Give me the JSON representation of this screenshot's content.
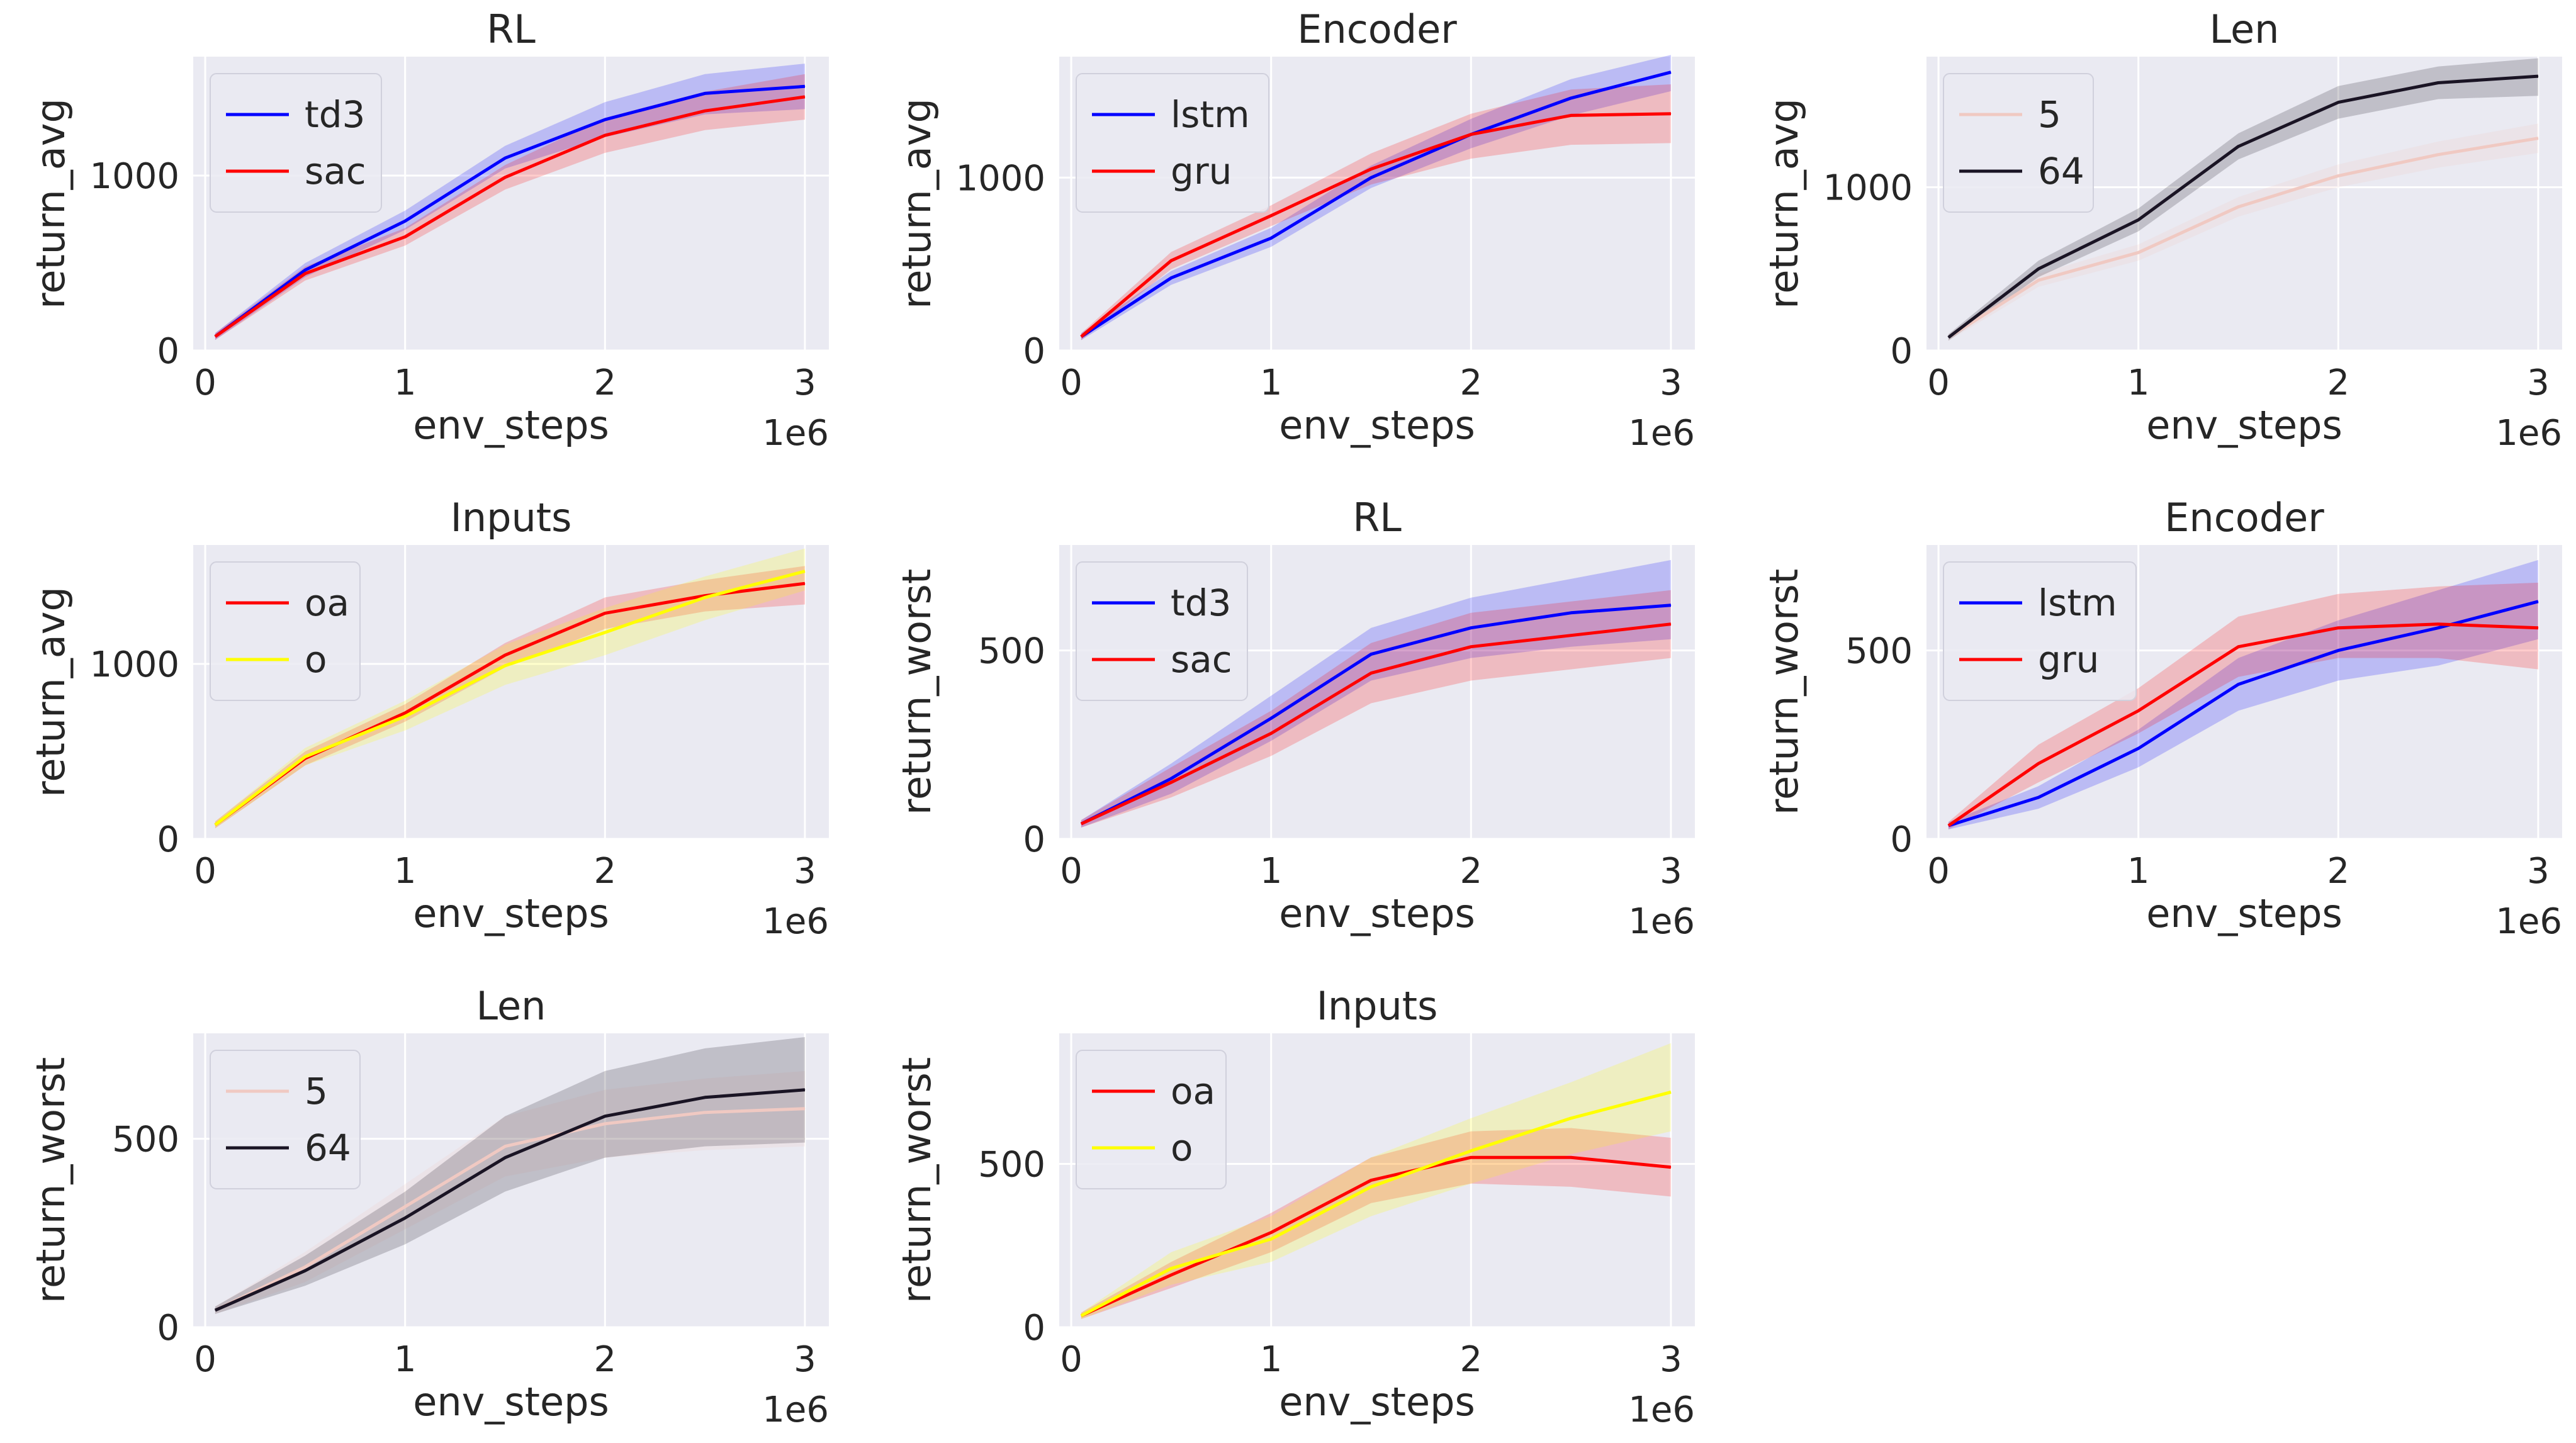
{
  "figure": {
    "colors": {
      "background": "#eaeaf2",
      "grid": "#ffffff",
      "td3": "#0000ff",
      "sac": "#ff0000",
      "lstm": "#0000ff",
      "gru": "#ff0000",
      "len5": "#f0c9c2",
      "len64": "#1a1424",
      "oa": "#ff0000",
      "o": "#ffff00"
    }
  },
  "chart_data": [
    {
      "type": "line",
      "title": "RL",
      "xlabel": "env_steps",
      "ylabel": "return_avg",
      "x_offset_label": "1e6",
      "xlim": [
        -0.06,
        3.12
      ],
      "ylim": [
        0,
        1680
      ],
      "xticks": [
        0,
        1,
        2,
        3
      ],
      "yticks": [
        0,
        1000
      ],
      "x": [
        0.05,
        0.5,
        1.0,
        1.5,
        2.0,
        2.5,
        3.0
      ],
      "series": [
        {
          "name": "td3",
          "color": "#0000ff",
          "values": [
            80,
            460,
            740,
            1100,
            1320,
            1470,
            1510
          ],
          "lower": [
            60,
            420,
            690,
            1040,
            1220,
            1350,
            1380
          ],
          "upper": [
            100,
            500,
            800,
            1170,
            1420,
            1580,
            1640
          ]
        },
        {
          "name": "sac",
          "color": "#ff0000",
          "values": [
            80,
            440,
            650,
            990,
            1230,
            1370,
            1450
          ],
          "lower": [
            60,
            400,
            600,
            920,
            1130,
            1260,
            1320
          ],
          "upper": [
            100,
            480,
            700,
            1060,
            1330,
            1480,
            1580
          ]
        }
      ]
    },
    {
      "type": "line",
      "title": "Encoder",
      "xlabel": "env_steps",
      "ylabel": "return_avg",
      "x_offset_label": "1e6",
      "xlim": [
        -0.06,
        3.12
      ],
      "ylim": [
        0,
        1700
      ],
      "xticks": [
        0,
        1,
        2,
        3
      ],
      "yticks": [
        0,
        1000
      ],
      "x": [
        0.05,
        0.5,
        1.0,
        1.5,
        2.0,
        2.5,
        3.0
      ],
      "series": [
        {
          "name": "lstm",
          "color": "#0000ff",
          "values": [
            80,
            420,
            650,
            1000,
            1250,
            1460,
            1610
          ],
          "lower": [
            60,
            380,
            600,
            940,
            1170,
            1360,
            1500
          ],
          "upper": [
            100,
            460,
            710,
            1070,
            1340,
            1570,
            1710
          ]
        },
        {
          "name": "gru",
          "color": "#ff0000",
          "values": [
            80,
            520,
            780,
            1050,
            1250,
            1360,
            1370
          ],
          "lower": [
            60,
            470,
            720,
            960,
            1110,
            1190,
            1200
          ],
          "upper": [
            100,
            570,
            840,
            1140,
            1370,
            1510,
            1540
          ]
        }
      ]
    },
    {
      "type": "line",
      "title": "Len",
      "xlabel": "env_steps",
      "ylabel": "return_avg",
      "x_offset_label": "1e6",
      "xlim": [
        -0.06,
        3.12
      ],
      "ylim": [
        0,
        1800
      ],
      "xticks": [
        0,
        1,
        2,
        3
      ],
      "yticks": [
        0,
        1000
      ],
      "x": [
        0.05,
        0.5,
        1.0,
        1.5,
        2.0,
        2.5,
        3.0
      ],
      "series": [
        {
          "name": "5",
          "color": "#f0c9c2",
          "values": [
            80,
            430,
            600,
            880,
            1070,
            1200,
            1300
          ],
          "lower": [
            60,
            390,
            550,
            820,
            1000,
            1120,
            1210
          ],
          "upper": [
            100,
            470,
            650,
            940,
            1140,
            1280,
            1390
          ]
        },
        {
          "name": "64",
          "color": "#1a1424",
          "values": [
            80,
            500,
            800,
            1250,
            1520,
            1640,
            1680
          ],
          "lower": [
            60,
            450,
            730,
            1170,
            1420,
            1540,
            1560
          ],
          "upper": [
            100,
            550,
            870,
            1330,
            1620,
            1740,
            1790
          ]
        }
      ]
    },
    {
      "type": "line",
      "title": "Inputs",
      "xlabel": "env_steps",
      "ylabel": "return_avg",
      "x_offset_label": "1e6",
      "xlim": [
        -0.06,
        3.12
      ],
      "ylim": [
        0,
        1680
      ],
      "xticks": [
        0,
        1,
        2,
        3
      ],
      "yticks": [
        0,
        1000
      ],
      "x": [
        0.05,
        0.5,
        1.0,
        1.5,
        2.0,
        2.5,
        3.0
      ],
      "series": [
        {
          "name": "oa",
          "color": "#ff0000",
          "values": [
            80,
            460,
            720,
            1050,
            1290,
            1390,
            1460
          ],
          "lower": [
            60,
            420,
            670,
            980,
            1200,
            1300,
            1340
          ],
          "upper": [
            100,
            500,
            770,
            1120,
            1380,
            1480,
            1560
          ]
        },
        {
          "name": "o",
          "color": "#ffff00",
          "values": [
            80,
            470,
            700,
            990,
            1180,
            1380,
            1530
          ],
          "lower": [
            60,
            420,
            620,
            880,
            1050,
            1250,
            1420
          ],
          "upper": [
            100,
            520,
            790,
            1110,
            1320,
            1500,
            1660
          ]
        }
      ]
    },
    {
      "type": "line",
      "title": "RL",
      "xlabel": "env_steps",
      "ylabel": "return_worst",
      "x_offset_label": "1e6",
      "xlim": [
        -0.06,
        3.12
      ],
      "ylim": [
        0,
        780
      ],
      "xticks": [
        0,
        1,
        2,
        3
      ],
      "yticks": [
        0,
        500
      ],
      "x": [
        0.05,
        0.5,
        1.0,
        1.5,
        2.0,
        2.5,
        3.0
      ],
      "series": [
        {
          "name": "td3",
          "color": "#0000ff",
          "values": [
            40,
            160,
            320,
            490,
            560,
            600,
            620
          ],
          "lower": [
            30,
            120,
            260,
            420,
            480,
            510,
            530
          ],
          "upper": [
            50,
            200,
            380,
            560,
            640,
            690,
            740
          ]
        },
        {
          "name": "sac",
          "color": "#ff0000",
          "values": [
            40,
            150,
            280,
            440,
            510,
            540,
            570
          ],
          "lower": [
            30,
            110,
            220,
            360,
            420,
            450,
            480
          ],
          "upper": [
            50,
            190,
            340,
            520,
            600,
            630,
            660
          ]
        }
      ]
    },
    {
      "type": "line",
      "title": "Encoder",
      "xlabel": "env_steps",
      "ylabel": "return_worst",
      "x_offset_label": "1e6",
      "xlim": [
        -0.06,
        3.12
      ],
      "ylim": [
        0,
        780
      ],
      "xticks": [
        0,
        1,
        2,
        3
      ],
      "yticks": [
        0,
        500
      ],
      "x": [
        0.05,
        0.5,
        1.0,
        1.5,
        2.0,
        2.5,
        3.0
      ],
      "series": [
        {
          "name": "lstm",
          "color": "#0000ff",
          "values": [
            35,
            110,
            240,
            410,
            500,
            560,
            630
          ],
          "lower": [
            25,
            80,
            190,
            340,
            420,
            460,
            530
          ],
          "upper": [
            45,
            140,
            290,
            480,
            580,
            660,
            740
          ]
        },
        {
          "name": "gru",
          "color": "#ff0000",
          "values": [
            35,
            200,
            340,
            510,
            560,
            570,
            560
          ],
          "lower": [
            25,
            150,
            280,
            430,
            480,
            480,
            450
          ],
          "upper": [
            45,
            250,
            400,
            590,
            650,
            670,
            680
          ]
        }
      ]
    },
    {
      "type": "line",
      "title": "Len",
      "xlabel": "env_steps",
      "ylabel": "return_worst",
      "x_offset_label": "1e6",
      "xlim": [
        -0.06,
        3.12
      ],
      "ylim": [
        0,
        780
      ],
      "xticks": [
        0,
        1,
        2,
        3
      ],
      "yticks": [
        0,
        500
      ],
      "x": [
        0.05,
        0.5,
        1.0,
        1.5,
        2.0,
        2.5,
        3.0
      ],
      "series": [
        {
          "name": "5",
          "color": "#f0c9c2",
          "values": [
            45,
            160,
            320,
            480,
            540,
            570,
            580
          ],
          "lower": [
            35,
            120,
            260,
            400,
            450,
            470,
            480
          ],
          "upper": [
            55,
            200,
            380,
            560,
            630,
            660,
            680
          ]
        },
        {
          "name": "64",
          "color": "#1a1424",
          "values": [
            45,
            150,
            290,
            450,
            560,
            610,
            630
          ],
          "lower": [
            35,
            110,
            220,
            360,
            450,
            480,
            490
          ],
          "upper": [
            55,
            190,
            360,
            560,
            680,
            740,
            770
          ]
        }
      ]
    },
    {
      "type": "line",
      "title": "Inputs",
      "xlabel": "env_steps",
      "ylabel": "return_worst",
      "x_offset_label": "1e6",
      "xlim": [
        -0.06,
        3.12
      ],
      "ylim": [
        0,
        900
      ],
      "xticks": [
        0,
        1,
        2,
        3
      ],
      "yticks": [
        0,
        500
      ],
      "x": [
        0.05,
        0.5,
        1.0,
        1.5,
        2.0,
        2.5,
        3.0
      ],
      "series": [
        {
          "name": "oa",
          "color": "#ff0000",
          "values": [
            35,
            160,
            290,
            450,
            520,
            520,
            490
          ],
          "lower": [
            25,
            120,
            230,
            380,
            440,
            430,
            400
          ],
          "upper": [
            45,
            200,
            350,
            520,
            600,
            610,
            580
          ]
        },
        {
          "name": "o",
          "color": "#ffff00",
          "values": [
            35,
            180,
            270,
            430,
            540,
            640,
            720
          ],
          "lower": [
            25,
            130,
            200,
            340,
            440,
            530,
            600
          ],
          "upper": [
            45,
            230,
            340,
            520,
            640,
            750,
            870
          ]
        }
      ]
    }
  ]
}
